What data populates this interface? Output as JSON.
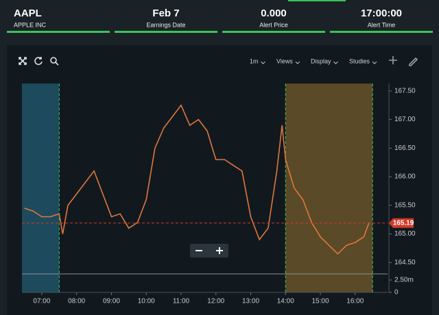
{
  "header": [
    {
      "title": "AAPL",
      "subtitle": "APPLE INC"
    },
    {
      "title": "Feb 7",
      "subtitle": "Earnings Date"
    },
    {
      "title": "0.000",
      "subtitle": "Alert Price"
    },
    {
      "title": "17:00:00",
      "subtitle": "Alert Time"
    }
  ],
  "toolbar": [
    "1m",
    "Views",
    "Display",
    "Studies"
  ],
  "chart_data": {
    "type": "line",
    "color": "#e0773f",
    "x": [
      6.5,
      6.75,
      7.0,
      7.25,
      7.5,
      7.6,
      7.75,
      8.0,
      8.25,
      8.5,
      8.75,
      9.0,
      9.25,
      9.5,
      9.75,
      10.0,
      10.25,
      10.5,
      10.75,
      11.0,
      11.25,
      11.5,
      11.75,
      12.0,
      12.25,
      12.5,
      12.75,
      13.0,
      13.25,
      13.5,
      13.75,
      13.9,
      14.0,
      14.25,
      14.5,
      14.75,
      15.0,
      15.25,
      15.5,
      15.75,
      16.0,
      16.25,
      16.4
    ],
    "values": [
      165.45,
      165.4,
      165.3,
      165.3,
      165.35,
      165.0,
      165.5,
      165.7,
      165.9,
      166.1,
      165.7,
      165.3,
      165.35,
      165.1,
      165.2,
      165.6,
      166.5,
      166.85,
      167.05,
      167.25,
      166.9,
      167.0,
      166.8,
      166.3,
      166.3,
      166.2,
      166.1,
      165.3,
      164.9,
      165.1,
      166.1,
      166.9,
      166.3,
      165.8,
      165.6,
      165.2,
      164.95,
      164.8,
      164.65,
      164.8,
      164.85,
      164.95,
      165.2
    ],
    "xlim": [
      6.43,
      16.93
    ],
    "xticks": [
      {
        "value": 7,
        "label": "07:00"
      },
      {
        "value": 8,
        "label": "08:00"
      },
      {
        "value": 9,
        "label": "09:00"
      },
      {
        "value": 10,
        "label": "10:00"
      },
      {
        "value": 11,
        "label": "11:00"
      },
      {
        "value": 12,
        "label": "12:00"
      },
      {
        "value": 13,
        "label": "13:00"
      },
      {
        "value": 14,
        "label": "14:00"
      },
      {
        "value": 15,
        "label": "15:00"
      },
      {
        "value": 16,
        "label": "16:00"
      }
    ],
    "ylim": [
      164.3,
      167.63
    ],
    "yticks": [
      {
        "value": 164.5,
        "label": "164.50"
      },
      {
        "value": 165,
        "label": "165.00"
      },
      {
        "value": 165.5,
        "label": "165.50"
      },
      {
        "value": 166,
        "label": "166.00"
      },
      {
        "value": 166.5,
        "label": "166.50"
      },
      {
        "value": 167,
        "label": "167.00"
      },
      {
        "value": 167.5,
        "label": "167.50"
      }
    ],
    "y2lim": [
      0,
      3750000
    ],
    "y2ticks": [
      0,
      {
        "value": 2500000,
        "label": "2.50m"
      }
    ],
    "last_price": 165.19,
    "extended_hours": [
      {
        "start": 6.43,
        "end": 7.5,
        "color": "#1d4a5c"
      },
      {
        "start": 14,
        "end": 16.5,
        "color": "#5a4a27"
      }
    ]
  }
}
